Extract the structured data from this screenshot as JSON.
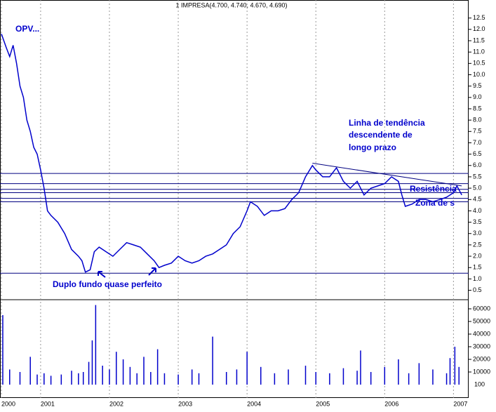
{
  "chart_data": [
    {
      "type": "line",
      "title": "1 IMPRESA(4.700, 4.740, 4.670, 4.690)",
      "color": "#0000cc",
      "x": [
        2000.43,
        2000.5,
        2000.55,
        2000.6,
        2000.65,
        2000.7,
        2000.75,
        2000.8,
        2000.85,
        2000.9,
        2000.95,
        2001.0,
        2001.05,
        2001.1,
        2001.15,
        2001.25,
        2001.35,
        2001.45,
        2001.55,
        2001.6,
        2001.65,
        2001.72,
        2001.78,
        2001.85,
        2001.95,
        2002.05,
        2002.15,
        2002.25,
        2002.35,
        2002.45,
        2002.55,
        2002.65,
        2002.72,
        2002.8,
        2002.9,
        2003.0,
        2003.1,
        2003.2,
        2003.3,
        2003.4,
        2003.5,
        2003.6,
        2003.7,
        2003.8,
        2003.9,
        2004.0,
        2004.05,
        2004.15,
        2004.25,
        2004.35,
        2004.45,
        2004.55,
        2004.65,
        2004.75,
        2004.85,
        2004.95,
        2005.0,
        2005.1,
        2005.2,
        2005.3,
        2005.4,
        2005.5,
        2005.6,
        2005.7,
        2005.8,
        2005.9,
        2006.0,
        2006.1,
        2006.2,
        2006.25,
        2006.3,
        2006.4,
        2006.5,
        2006.6,
        2006.7,
        2006.8,
        2006.9,
        2007.0,
        2007.05,
        2007.12
      ],
      "values": [
        11.8,
        11.2,
        10.8,
        11.3,
        10.5,
        9.5,
        9.0,
        8.0,
        7.5,
        6.8,
        6.5,
        5.8,
        5.0,
        4.0,
        3.8,
        3.5,
        3.0,
        2.3,
        2.0,
        1.8,
        1.3,
        1.4,
        2.2,
        2.4,
        2.2,
        2.0,
        2.3,
        2.6,
        2.5,
        2.4,
        2.1,
        1.8,
        1.5,
        1.6,
        1.7,
        2.0,
        1.8,
        1.7,
        1.8,
        2.0,
        2.1,
        2.3,
        2.5,
        3.0,
        3.3,
        4.0,
        4.4,
        4.2,
        3.8,
        4.0,
        4.0,
        4.1,
        4.5,
        4.8,
        5.5,
        6.0,
        5.8,
        5.5,
        5.5,
        5.9,
        5.3,
        5.0,
        5.3,
        4.7,
        5.0,
        5.1,
        5.2,
        5.5,
        5.3,
        4.7,
        4.2,
        4.3,
        4.5,
        4.5,
        4.4,
        4.5,
        4.6,
        4.8,
        5.1,
        4.7
      ],
      "xlim": [
        2000.43,
        2007.2
      ],
      "xticks": [
        {
          "value": 2000.43,
          "label": "2000"
        },
        2001,
        2002,
        2003,
        2004,
        2005,
        2006,
        2007
      ],
      "ylim": [
        0.3,
        12.8
      ],
      "yticks": [
        0.5,
        {
          "value": 1,
          "label": "1.0"
        },
        1.5,
        {
          "value": 2,
          "label": "2.0"
        },
        2.5,
        {
          "value": 3,
          "label": "3.0"
        },
        3.5,
        {
          "value": 4,
          "label": "4.0"
        },
        4.5,
        {
          "value": 5,
          "label": "5.0"
        },
        5.5,
        {
          "value": 6,
          "label": "6.0"
        },
        6.5,
        {
          "value": 7,
          "label": "7.0"
        },
        7.5,
        {
          "value": 8,
          "label": "8.0"
        },
        8.5,
        {
          "value": 9,
          "label": "9.0"
        },
        9.5,
        {
          "value": 10,
          "label": "10.0"
        },
        10.5,
        {
          "value": 11,
          "label": "11.0"
        },
        11.5,
        {
          "value": 12,
          "label": "12.0"
        },
        12.5
      ],
      "hlines": [
        5.65,
        5.2,
        4.95,
        4.8,
        4.55,
        4.4,
        1.25
      ],
      "trendline": {
        "x": [
          2004.95,
          2007.12
        ],
        "values": [
          6.1,
          5.1
        ]
      },
      "annotations": [
        "OPV...",
        "Linha de tendência",
        "descendente de",
        "longo prazo",
        "Resistência",
        "Zona de s",
        "Duplo fundo quase perfeito"
      ]
    },
    {
      "type": "bar",
      "color": "#0000cc",
      "x": [
        2000.45,
        2000.55,
        2000.7,
        2000.85,
        2000.95,
        2001.05,
        2001.15,
        2001.3,
        2001.45,
        2001.55,
        2001.62,
        2001.7,
        2001.75,
        2001.8,
        2001.9,
        2002.0,
        2002.1,
        2002.2,
        2002.3,
        2002.4,
        2002.5,
        2002.6,
        2002.7,
        2002.8,
        2003.0,
        2003.2,
        2003.3,
        2003.5,
        2003.7,
        2003.85,
        2004.0,
        2004.2,
        2004.4,
        2004.6,
        2004.85,
        2005.0,
        2005.2,
        2005.4,
        2005.6,
        2005.65,
        2005.8,
        2006.0,
        2006.2,
        2006.35,
        2006.5,
        2006.7,
        2006.9,
        2006.95,
        2007.02,
        2007.08
      ],
      "values": [
        55000,
        12000,
        10000,
        22000,
        8000,
        9000,
        7000,
        8000,
        11000,
        9000,
        10000,
        18000,
        35000,
        63000,
        15000,
        12000,
        26000,
        20000,
        14000,
        9000,
        22000,
        10000,
        28000,
        9000,
        8000,
        12000,
        9000,
        38000,
        10000,
        12000,
        26000,
        14000,
        9000,
        12000,
        15000,
        10000,
        9000,
        13000,
        11000,
        27000,
        10000,
        14000,
        20000,
        9000,
        17000,
        12000,
        9000,
        21000,
        30000,
        14000
      ],
      "xlim": [
        2000.43,
        2007.2
      ],
      "ylim": [
        0,
        65000
      ],
      "yticks": [
        10000,
        20000,
        30000,
        40000,
        50000,
        60000
      ],
      "scale_label": "100"
    }
  ]
}
